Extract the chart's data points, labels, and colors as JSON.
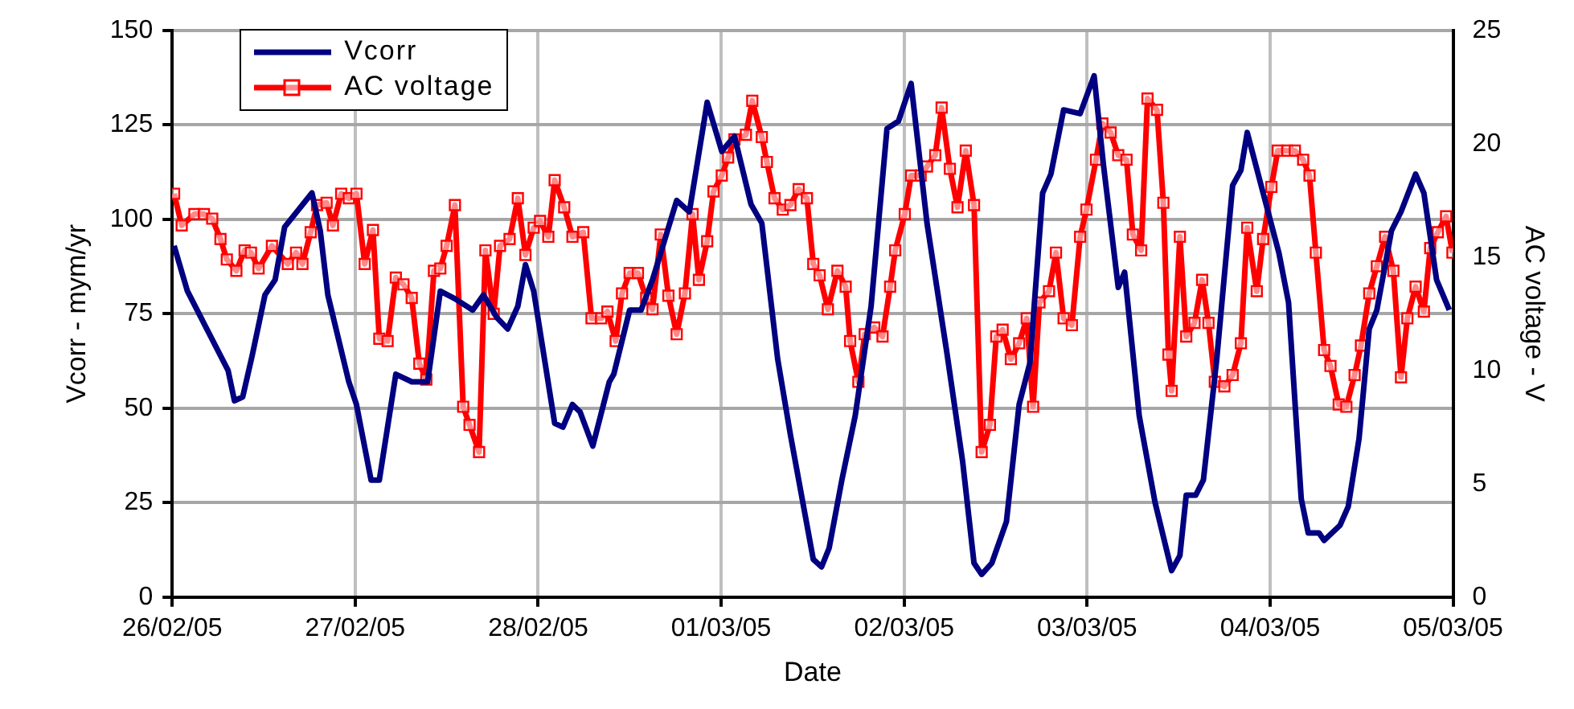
{
  "chart_data": {
    "type": "line",
    "xlabel": "Date",
    "ylabel": "Vcorr - mym/yr",
    "y2label": "AC voltage - V",
    "xlim": [
      "--02-26",
      "--03-05"
    ],
    "xticks": [
      {
        "value": "--02-26",
        "label": "26/02/05"
      },
      {
        "value": "--02-27",
        "label": "27/02/05"
      },
      {
        "value": "--02-28",
        "label": "28/02/05"
      },
      {
        "value": "--03-01",
        "label": "01/03/05"
      },
      {
        "value": "--03-02",
        "label": "02/03/05"
      },
      {
        "value": "--03-03",
        "label": "03/03/05"
      },
      {
        "value": "--03-04",
        "label": "04/03/05"
      },
      {
        "value": "--03-05",
        "label": "05/03/05"
      }
    ],
    "ylim": [
      0,
      150
    ],
    "yticks": [
      0,
      25,
      50,
      75,
      100,
      125,
      150
    ],
    "y2lim": [
      0,
      25
    ],
    "y2ticks": [
      0,
      5,
      10,
      15,
      20,
      25
    ],
    "grid": true,
    "legend": "top left",
    "line_style": "solid",
    "series": [
      {
        "name": "Vcorr",
        "color": "#000080",
        "marker": "none",
        "x": [
          "--02-26T00:15",
          "--02-26T02:00",
          "--02-26T07:20",
          "--02-26T08:10",
          "--02-26T09:15",
          "--02-26T10:30",
          "--02-26T12:10",
          "--02-26T13:30",
          "--02-26T14:45",
          "--02-26T18:20",
          "--02-26T19:25",
          "--02-26T20:25",
          "--02-26T23:10",
          "--02-27T00:10",
          "--02-27T02:05",
          "--02-27T03:10",
          "--02-27T05:20",
          "--02-27T07:25",
          "--02-27T09:30",
          "--02-27T11:10",
          "--02-27T13:05",
          "--02-27T15:25",
          "--02-27T16:50",
          "--02-27T18:35",
          "--02-27T20:00",
          "--02-27T21:20",
          "--02-27T22:20",
          "--02-27T23:25",
          "--02-28T02:10",
          "--02-28T03:15",
          "--02-28T04:30",
          "--02-28T05:30",
          "--02-28T07:10",
          "--02-28T09:20",
          "--02-28T09:55",
          "--02-28T12:00",
          "--02-28T13:30",
          "--02-28T15:00",
          "--02-28T18:10",
          "--02-28T19:50",
          "--02-28T22:10",
          "--03-01T00:05",
          "--03-01T01:45",
          "--03-01T03:55",
          "--03-01T05:20",
          "--03-01T07:25",
          "--03-01T09:05",
          "--03-01T12:05",
          "--03-01T13:10",
          "--03-01T14:10",
          "--03-01T15:50",
          "--03-01T17:35",
          "--03-01T19:40",
          "--03-01T21:45",
          "--03-01T23:15",
          "--03-02T00:55",
          "--03-02T03:00",
          "--03-02T05:35",
          "--03-02T07:40",
          "--03-02T09:10",
          "--03-02T10:10",
          "--03-02T11:30",
          "--03-02T13:25",
          "--03-02T15:05",
          "--03-02T16:30",
          "--03-02T18:10",
          "--03-02T19:15",
          "--03-02T20:55",
          "--03-02T23:05",
          "--03-03T00:55",
          "--03-03T02:10",
          "--03-03T04:05",
          "--03-03T04:55",
          "--03-03T06:50",
          "--03-03T08:55",
          "--03-03T11:05",
          "--03-03T12:10",
          "--03-03T13:00",
          "--03-03T14:15",
          "--03-03T15:15",
          "--03-03T17:00",
          "--03-03T19:05",
          "--03-03T20:10",
          "--03-03T21:00",
          "--03-03T23:05",
          "--03-04T01:10",
          "--03-04T02:25",
          "--03-04T04:05",
          "--03-04T05:00",
          "--03-04T06:25",
          "--03-04T07:05",
          "--03-04T09:10",
          "--03-04T10:15",
          "--03-04T11:40",
          "--03-04T13:00",
          "--03-04T14:00",
          "--03-04T15:55",
          "--03-04T17:10",
          "--03-04T19:05",
          "--03-04T20:10",
          "--03-04T21:50",
          "--03-04T23:30"
        ],
        "values": [
          93,
          81,
          60,
          52,
          53,
          64,
          80,
          84,
          98,
          107,
          97,
          80,
          57,
          51,
          31,
          31,
          59,
          57,
          57,
          81,
          79,
          76,
          80,
          74,
          71,
          77,
          88,
          81,
          46,
          45,
          51,
          49,
          40,
          57,
          59,
          76,
          76,
          84,
          105,
          102,
          131,
          118,
          122,
          104,
          99,
          63,
          43,
          10,
          8,
          13,
          31,
          48,
          77,
          124,
          126,
          136,
          99,
          65,
          36,
          9,
          6,
          9,
          20,
          51,
          62,
          107,
          112,
          129,
          128,
          138,
          114,
          82,
          86,
          48,
          25,
          7,
          11,
          27,
          27,
          31,
          63,
          109,
          113,
          123,
          107,
          91,
          78,
          26,
          17,
          17,
          15,
          19,
          24,
          42,
          71,
          76,
          97,
          102,
          112,
          107,
          84,
          76
        ]
      },
      {
        "name": "AC voltage",
        "color": "#ff0000",
        "marker": "square",
        "axis": "y2",
        "x": [
          "--02-26T00:15",
          "--02-26T01:15",
          "--02-26T02:55",
          "--02-26T04:10",
          "--02-26T05:15",
          "--02-26T06:20",
          "--02-26T07:10",
          "--02-26T08:25",
          "--02-26T09:30",
          "--02-26T10:20",
          "--02-26T11:20",
          "--02-26T13:05",
          "--02-26T15:10",
          "--02-26T16:15",
          "--02-26T17:05",
          "--02-26T18:10",
          "--02-26T19:00",
          "--02-26T20:15",
          "--02-26T21:05",
          "--02-26T22:10",
          "--02-26T23:10",
          "--02-27T00:10",
          "--02-27T01:15",
          "--02-27T02:20",
          "--02-27T03:10",
          "--02-27T04:15",
          "--02-27T05:20",
          "--02-27T06:20",
          "--02-27T07:25",
          "--02-27T08:25",
          "--02-27T09:20",
          "--02-27T10:20",
          "--02-27T11:10",
          "--02-27T12:00",
          "--02-27T13:05",
          "--02-27T14:10",
          "--02-27T15:00",
          "--02-27T16:15",
          "--02-27T17:05",
          "--02-27T18:10",
          "--02-27T19:00",
          "--02-27T20:15",
          "--02-27T21:20",
          "--02-27T22:20",
          "--02-27T23:25",
          "--02-28T00:15",
          "--02-28T01:20",
          "--02-28T02:10",
          "--02-28T03:25",
          "--02-28T04:30",
          "--02-28T05:55",
          "--02-28T07:00",
          "--02-28T08:15",
          "--02-28T09:05",
          "--02-28T10:10",
          "--02-28T11:00",
          "--02-28T12:00",
          "--02-28T13:05",
          "--02-28T14:10",
          "--02-28T15:00",
          "--02-28T16:05",
          "--02-28T17:05",
          "--02-28T18:10",
          "--02-28T19:15",
          "--02-28T20:15",
          "--02-28T21:05",
          "--02-28T22:10",
          "--02-28T23:00",
          "--03-01T00:05",
          "--03-01T00:55",
          "--03-01T01:45",
          "--03-01T03:15",
          "--03-01T04:05",
          "--03-01T05:20",
          "--03-01T06:00",
          "--03-01T07:00",
          "--03-01T08:05",
          "--03-01T09:05",
          "--03-01T10:10",
          "--03-01T11:15",
          "--03-01T12:05",
          "--03-01T12:55",
          "--03-01T14:00",
          "--03-01T15:15",
          "--03-01T16:20",
          "--03-01T16:55",
          "--03-01T18:00",
          "--03-01T18:50",
          "--03-01T20:05",
          "--03-01T21:10",
          "--03-01T22:10",
          "--03-01T22:50",
          "--03-02T00:05",
          "--03-02T00:55",
          "--03-02T02:10",
          "--03-02T03:00",
          "--03-02T04:05",
          "--03-02T04:55",
          "--03-02T06:00",
          "--03-02T07:00",
          "--03-02T08:05",
          "--03-02T09:10",
          "--03-02T10:10",
          "--03-02T11:15",
          "--03-02T12:05",
          "--03-02T12:55",
          "--03-02T14:00",
          "--03-02T15:05",
          "--03-02T16:05",
          "--03-02T16:55",
          "--03-02T17:45",
          "--03-02T19:00",
          "--03-02T19:55",
          "--03-02T20:55",
          "--03-02T22:00",
          "--03-02T23:05",
          "--03-02T23:55",
          "--03-03T01:10",
          "--03-03T02:00",
          "--03-03T03:05",
          "--03-03T04:05",
          "--03-03T05:10",
          "--03-03T06:00",
          "--03-03T07:05",
          "--03-03T07:55",
          "--03-03T09:10",
          "--03-03T10:00",
          "--03-03T10:40",
          "--03-03T11:05",
          "--03-03T12:10",
          "--03-03T13:00",
          "--03-03T14:05",
          "--03-03T15:05",
          "--03-03T15:55",
          "--03-03T16:45",
          "--03-03T18:00",
          "--03-03T19:05",
          "--03-03T20:10",
          "--03-03T21:00",
          "--03-03T22:15",
          "--03-03T23:05",
          "--03-04T00:10",
          "--03-04T01:00",
          "--03-04T02:15",
          "--03-04T03:15",
          "--03-04T04:20",
          "--03-04T05:10",
          "--03-04T06:00",
          "--03-04T07:05",
          "--03-04T07:55",
          "--03-04T09:00",
          "--03-04T10:00",
          "--03-04T11:05",
          "--03-04T11:55",
          "--03-04T13:00",
          "--03-04T14:00",
          "--03-04T15:05",
          "--03-04T16:10",
          "--03-04T17:10",
          "--03-04T18:00",
          "--03-04T19:05",
          "--03-04T20:10",
          "--03-04T21:00",
          "--03-04T22:00",
          "--03-04T23:05",
          "--03-04T23:55"
        ],
        "values": [
          17.8,
          16.4,
          16.9,
          16.9,
          16.7,
          15.8,
          14.9,
          14.4,
          15.3,
          15.2,
          14.5,
          15.5,
          14.7,
          15.2,
          14.7,
          16.1,
          17.3,
          17.4,
          16.4,
          17.8,
          17.6,
          17.8,
          14.7,
          16.2,
          11.4,
          11.3,
          14.1,
          13.8,
          13.2,
          10.3,
          9.6,
          14.4,
          14.5,
          15.5,
          17.3,
          8.4,
          7.6,
          6.4,
          15.3,
          12.5,
          15.5,
          15.8,
          17.6,
          15.1,
          16.3,
          16.6,
          15.9,
          18.4,
          17.2,
          15.9,
          16.1,
          12.3,
          12.3,
          12.6,
          11.3,
          13.4,
          14.3,
          14.3,
          13.2,
          12.7,
          16.0,
          13.3,
          11.6,
          13.4,
          16.9,
          14.0,
          15.7,
          17.9,
          18.6,
          19.4,
          20.2,
          20.4,
          21.9,
          20.3,
          19.2,
          17.6,
          17.1,
          17.3,
          18.0,
          17.6,
          14.7,
          14.2,
          12.7,
          14.4,
          13.7,
          11.3,
          9.5,
          11.6,
          11.9,
          11.5,
          13.7,
          15.3,
          16.9,
          18.6,
          18.6,
          19.0,
          19.5,
          21.6,
          18.9,
          17.2,
          19.7,
          17.3,
          6.4,
          7.6,
          11.5,
          11.8,
          10.5,
          11.2,
          12.3,
          8.4,
          13.0,
          13.5,
          15.2,
          12.3,
          12.0,
          15.9,
          17.1,
          19.3,
          20.9,
          20.5,
          19.5,
          19.3,
          16.0,
          15.3,
          22.0,
          21.5,
          17.4,
          10.7,
          9.1,
          15.9,
          11.5,
          12.1,
          14.0,
          12.1,
          9.5,
          9.3,
          9.8,
          11.2,
          16.3,
          13.5,
          15.8,
          18.1,
          19.7,
          19.7,
          19.7,
          19.3,
          18.6,
          15.2,
          10.9,
          10.2,
          8.5,
          8.4,
          9.8,
          11.1,
          13.4,
          14.6,
          15.9,
          14.4,
          9.7,
          12.3,
          13.7,
          12.6,
          15.4,
          16.1,
          16.8,
          15.2
        ]
      }
    ]
  }
}
